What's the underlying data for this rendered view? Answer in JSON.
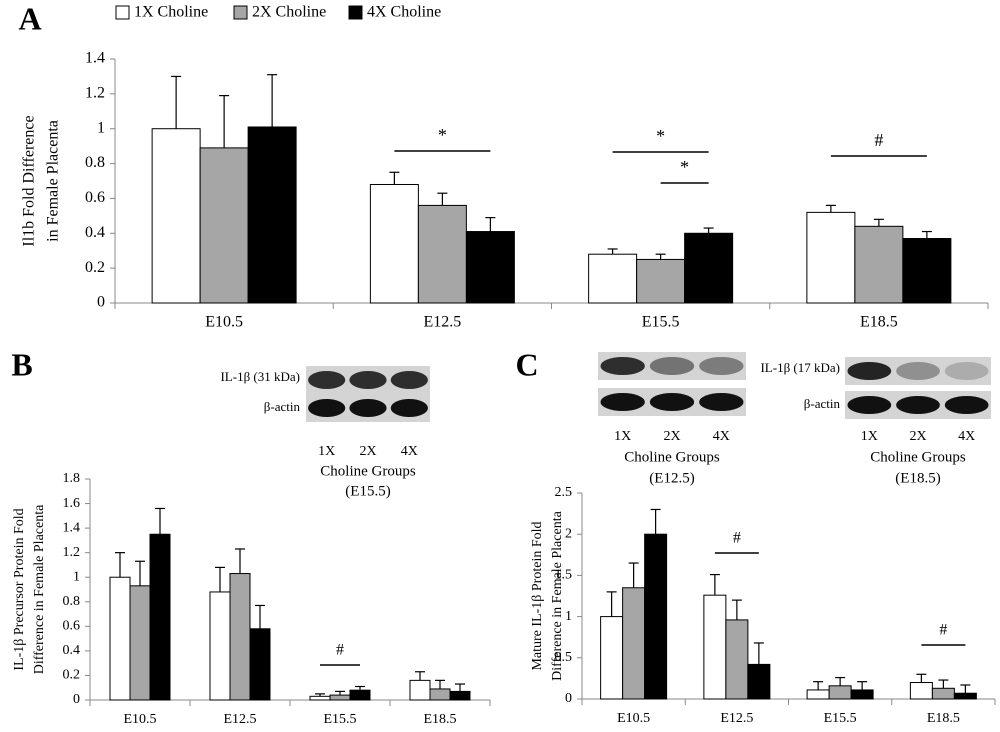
{
  "chart_data": [
    {
      "type": "bar",
      "panel_label": "A",
      "ylabel": [
        "Il1b Fold Difference",
        "in Female Placenta"
      ],
      "categories": [
        "E10.5",
        "E12.5",
        "E15.5",
        "E18.5"
      ],
      "series": [
        {
          "name": "1X Choline",
          "color": "#ffffff",
          "values": [
            1.0,
            0.68,
            0.28,
            0.52
          ],
          "errors": [
            0.3,
            0.07,
            0.03,
            0.04
          ]
        },
        {
          "name": "2X Choline",
          "color": "#a6a6a6",
          "values": [
            0.89,
            0.56,
            0.25,
            0.44
          ],
          "errors": [
            0.3,
            0.07,
            0.03,
            0.04
          ]
        },
        {
          "name": "4X Choline",
          "color": "#000000",
          "values": [
            1.01,
            0.41,
            0.4,
            0.37
          ],
          "errors": [
            0.3,
            0.08,
            0.03,
            0.04
          ]
        }
      ],
      "ylim": [
        0,
        1.4
      ],
      "yticks": [
        0,
        0.2,
        0.4,
        0.6,
        0.8,
        1,
        1.2,
        1.4
      ],
      "annotations": [
        "*",
        "*",
        "*",
        "#"
      ]
    },
    {
      "type": "bar",
      "panel_label": "B",
      "ylabel": [
        "IL-1β Precursor Protein Fold",
        "Difference in Female Placenta"
      ],
      "categories": [
        "E10.5",
        "E12.5",
        "E15.5",
        "E18.5"
      ],
      "series": [
        {
          "color": "#ffffff",
          "values": [
            1.0,
            0.88,
            0.03,
            0.16
          ],
          "errors": [
            0.2,
            0.2,
            0.02,
            0.07
          ]
        },
        {
          "color": "#a6a6a6",
          "values": [
            0.93,
            1.03,
            0.04,
            0.09
          ],
          "errors": [
            0.2,
            0.2,
            0.03,
            0.07
          ]
        },
        {
          "color": "#000000",
          "values": [
            1.35,
            0.58,
            0.08,
            0.07
          ],
          "errors": [
            0.21,
            0.19,
            0.03,
            0.06
          ]
        }
      ],
      "ylim": [
        0,
        1.8
      ],
      "yticks": [
        0,
        0.2,
        0.4,
        0.6,
        0.8,
        1,
        1.2,
        1.4,
        1.6,
        1.8
      ],
      "annotations": [
        "#"
      ]
    },
    {
      "type": "bar",
      "panel_label": "C",
      "ylabel": [
        "Mature IL-1β Protein Fold",
        "Difference in Female Placenta"
      ],
      "categories": [
        "E10.5",
        "E12.5",
        "E15.5",
        "E18.5"
      ],
      "series": [
        {
          "color": "#ffffff",
          "values": [
            1.0,
            1.26,
            0.11,
            0.2
          ],
          "errors": [
            0.3,
            0.25,
            0.1,
            0.1
          ]
        },
        {
          "color": "#a6a6a6",
          "values": [
            1.35,
            0.96,
            0.16,
            0.13
          ],
          "errors": [
            0.3,
            0.24,
            0.1,
            0.1
          ]
        },
        {
          "color": "#000000",
          "values": [
            2.0,
            0.42,
            0.11,
            0.07
          ],
          "errors": [
            0.3,
            0.26,
            0.1,
            0.1
          ]
        }
      ],
      "ylim": [
        0,
        2.5
      ],
      "yticks": [
        0,
        0.5,
        1,
        1.5,
        2,
        2.5
      ],
      "annotations": [
        "#",
        "#"
      ]
    }
  ],
  "blots": [
    {
      "target_label": "IL-1β (31 kDa)",
      "control_label": "β-actin",
      "lanes": [
        "1X",
        "2X",
        "4X"
      ],
      "group_label": "Choline Groups",
      "stage": "(E15.5)"
    },
    {
      "lanes": [
        "1X",
        "2X",
        "4X"
      ],
      "group_label": "Choline Groups",
      "stage": "(E12.5)"
    },
    {
      "target_label": "IL-1β (17 kDa)",
      "control_label": "β-actin",
      "lanes": [
        "1X",
        "2X",
        "4X"
      ],
      "group_label": "Choline Groups",
      "stage": "(E18.5)"
    }
  ]
}
